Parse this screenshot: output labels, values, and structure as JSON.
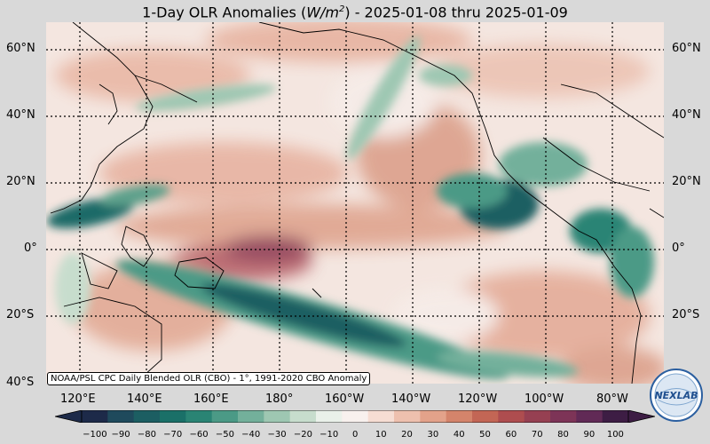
{
  "title": {
    "prefix": "1-Day OLR Anomalies (",
    "unit_base": "W/m",
    "unit_exp": "2",
    "suffix": ") - 2025-01-08 thru 2025-01-09"
  },
  "credit": "NOAA/PSL CPC Daily Blended OLR (CBO) - 1°, 1991-2020 CBO Anomaly",
  "lat_labels": [
    "60°N",
    "40°N",
    "20°N",
    "0°",
    "20°S",
    "40°S"
  ],
  "lon_labels": [
    "120°E",
    "140°E",
    "160°E",
    "180°",
    "160°W",
    "140°W",
    "120°W",
    "100°W",
    "80°W"
  ],
  "colorbar": {
    "ticks": [
      "−100",
      "−90",
      "−80",
      "−70",
      "−60",
      "−50",
      "−40",
      "−30",
      "−20",
      "−10",
      "0",
      "10",
      "20",
      "30",
      "40",
      "50",
      "60",
      "70",
      "80",
      "90",
      "100"
    ],
    "colors": [
      "#1d2a49",
      "#1f4a5c",
      "#1c5e62",
      "#1a7068",
      "#2a8474",
      "#4b9a86",
      "#73b09b",
      "#9ec7b2",
      "#c7ddcd",
      "#eaf1ea",
      "#f8f1ee",
      "#f6ddd3",
      "#eec0ae",
      "#e3a28a",
      "#d4846b",
      "#c36655",
      "#ae4d4f",
      "#964052",
      "#7d3457",
      "#612a56",
      "#3d1d44"
    ]
  },
  "logo": {
    "label": "NEXLAB"
  }
}
